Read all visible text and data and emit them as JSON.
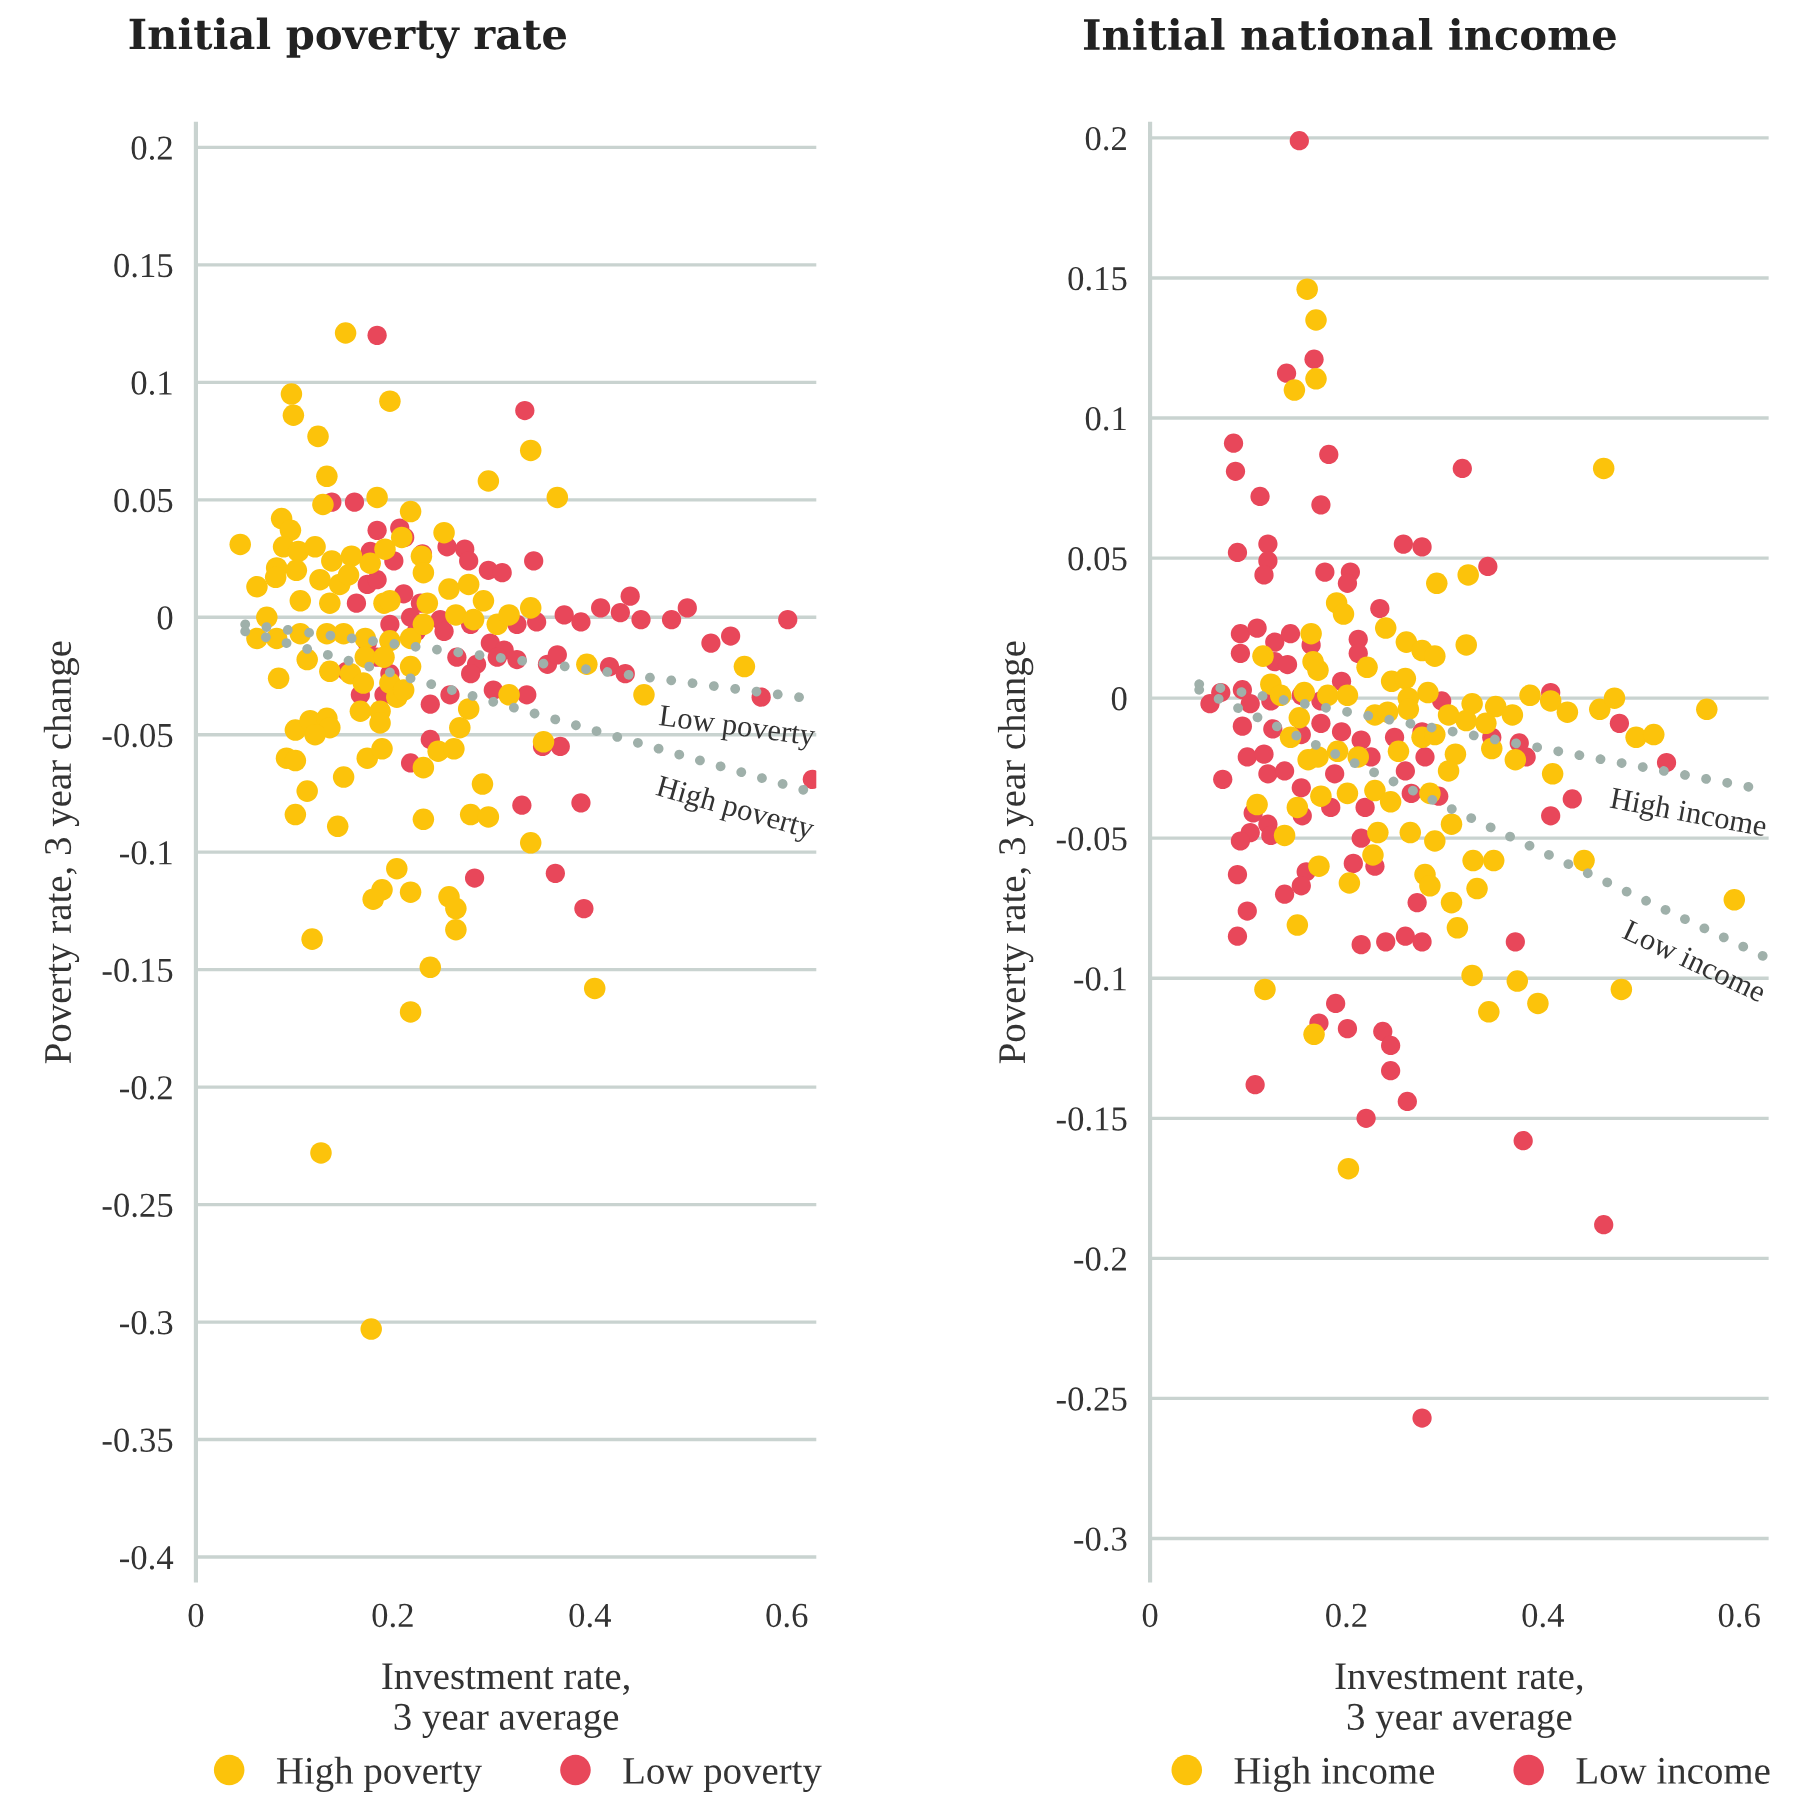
{
  "chart_data": [
    {
      "type": "scatter",
      "title": "Initial poverty rate",
      "xlabel": "Investment rate,\n3 year average",
      "ylabel": "Poverty rate, 3 year change",
      "xlim": [
        0,
        0.63
      ],
      "ylim": [
        -0.41,
        0.21
      ],
      "xticks": [
        0,
        0.2,
        0.4,
        0.6
      ],
      "yticks": [
        0.2,
        0.15,
        0.1,
        0.05,
        0,
        -0.05,
        -0.1,
        -0.15,
        -0.2,
        -0.25,
        -0.3,
        -0.35,
        -0.4
      ],
      "grid": "y",
      "legend": "bottom",
      "marker": "circle",
      "series": [
        {
          "name": "High poverty",
          "color": "#fcc30b",
          "x": [
            0.152,
            0.097,
            0.099,
            0.197,
            0.124,
            0.133,
            0.34,
            0.297,
            0.367,
            0.184,
            0.129,
            0.218,
            0.087,
            0.096,
            0.045,
            0.252,
            0.089,
            0.104,
            0.121,
            0.138,
            0.158,
            0.177,
            0.192,
            0.209,
            0.082,
            0.081,
            0.062,
            0.102,
            0.126,
            0.146,
            0.155,
            0.229,
            0.231,
            0.257,
            0.277,
            0.292,
            0.34,
            0.106,
            0.136,
            0.191,
            0.197,
            0.235,
            0.264,
            0.282,
            0.306,
            0.318,
            0.072,
            0.062,
            0.082,
            0.106,
            0.133,
            0.15,
            0.172,
            0.197,
            0.218,
            0.231,
            0.113,
            0.136,
            0.157,
            0.172,
            0.191,
            0.218,
            0.17,
            0.197,
            0.204,
            0.211,
            0.084,
            0.167,
            0.187,
            0.187,
            0.277,
            0.268,
            0.318,
            0.397,
            0.455,
            0.557,
            0.101,
            0.116,
            0.133,
            0.136,
            0.121,
            0.092,
            0.101,
            0.15,
            0.174,
            0.189,
            0.231,
            0.246,
            0.262,
            0.113,
            0.101,
            0.144,
            0.231,
            0.279,
            0.297,
            0.291,
            0.34,
            0.353,
            0.204,
            0.189,
            0.18,
            0.218,
            0.257,
            0.264,
            0.264,
            0.118,
            0.238,
            0.218,
            0.405,
            0.127,
            0.178
          ],
          "values": [
            0.121,
            0.095,
            0.086,
            0.092,
            0.077,
            0.06,
            0.071,
            0.058,
            0.051,
            0.051,
            0.048,
            0.045,
            0.042,
            0.037,
            0.031,
            0.036,
            0.03,
            0.028,
            0.03,
            0.024,
            0.026,
            0.023,
            0.029,
            0.034,
            0.021,
            0.017,
            0.013,
            0.02,
            0.016,
            0.014,
            0.018,
            0.026,
            0.019,
            0.012,
            0.014,
            0.007,
            0.004,
            0.007,
            0.006,
            0.006,
            0.007,
            0.006,
            0.001,
            -0.001,
            -0.003,
            0.001,
            0.0,
            -0.009,
            -0.009,
            -0.007,
            -0.007,
            -0.007,
            -0.009,
            -0.01,
            -0.009,
            -0.003,
            -0.018,
            -0.023,
            -0.024,
            -0.017,
            -0.017,
            -0.021,
            -0.028,
            -0.028,
            -0.034,
            -0.031,
            -0.026,
            -0.04,
            -0.04,
            -0.045,
            -0.039,
            -0.047,
            -0.033,
            -0.02,
            -0.033,
            -0.021,
            -0.048,
            -0.044,
            -0.043,
            -0.047,
            -0.05,
            -0.06,
            -0.061,
            -0.068,
            -0.06,
            -0.056,
            -0.064,
            -0.057,
            -0.056,
            -0.074,
            -0.084,
            -0.089,
            -0.086,
            -0.084,
            -0.085,
            -0.071,
            -0.096,
            -0.053,
            -0.107,
            -0.116,
            -0.12,
            -0.117,
            -0.119,
            -0.124,
            -0.133,
            -0.137,
            -0.149,
            -0.168,
            -0.158,
            -0.228,
            -0.303
          ]
        },
        {
          "name": "Low poverty",
          "color": "#e8475a",
          "x": [
            0.184,
            0.334,
            0.138,
            0.161,
            0.184,
            0.207,
            0.212,
            0.255,
            0.273,
            0.277,
            0.297,
            0.311,
            0.343,
            0.177,
            0.201,
            0.23,
            0.174,
            0.184,
            0.211,
            0.228,
            0.248,
            0.218,
            0.252,
            0.279,
            0.299,
            0.313,
            0.326,
            0.346,
            0.374,
            0.391,
            0.411,
            0.431,
            0.441,
            0.452,
            0.483,
            0.499,
            0.601,
            0.265,
            0.285,
            0.279,
            0.306,
            0.326,
            0.357,
            0.367,
            0.42,
            0.436,
            0.523,
            0.543,
            0.574,
            0.184,
            0.197,
            0.167,
            0.191,
            0.238,
            0.258,
            0.302,
            0.336,
            0.238,
            0.218,
            0.352,
            0.37,
            0.331,
            0.391,
            0.626,
            0.283,
            0.365,
            0.394,
            0.163,
            0.197,
            0.224,
            0.174,
            0.153
          ],
          "values": [
            0.12,
            0.088,
            0.049,
            0.049,
            0.037,
            0.038,
            0.034,
            0.03,
            0.029,
            0.024,
            0.02,
            0.019,
            0.024,
            0.028,
            0.024,
            0.027,
            0.014,
            0.016,
            0.01,
            0.006,
            -0.001,
            0.0,
            -0.006,
            -0.003,
            -0.011,
            -0.014,
            -0.003,
            -0.002,
            0.001,
            -0.002,
            0.004,
            0.002,
            0.009,
            -0.001,
            -0.001,
            0.004,
            -0.001,
            -0.017,
            -0.02,
            -0.024,
            -0.017,
            -0.018,
            -0.02,
            -0.016,
            -0.021,
            -0.024,
            -0.011,
            -0.008,
            -0.034,
            -0.017,
            -0.024,
            -0.033,
            -0.033,
            -0.037,
            -0.033,
            -0.031,
            -0.033,
            -0.052,
            -0.062,
            -0.055,
            -0.055,
            -0.08,
            -0.079,
            -0.069,
            -0.111,
            -0.109,
            -0.124,
            0.006,
            -0.003,
            -0.006,
            -0.011,
            -0.023
          ]
        },
        {
          "type": "line",
          "name": "Low poverty",
          "color": "#9fb0aa",
          "line_style": "dotted",
          "marker": "none",
          "x": [
            0.05,
            0.63
          ],
          "values": [
            -0.003,
            -0.035
          ]
        },
        {
          "type": "line",
          "name": "High poverty",
          "color": "#9fb0aa",
          "line_style": "dotted",
          "marker": "none",
          "x": [
            0.05,
            0.63
          ],
          "values": [
            -0.006,
            -0.075
          ]
        }
      ]
    },
    {
      "type": "scatter",
      "title": "Initial national income",
      "xlabel": "Investment rate,\n3 year average",
      "ylabel": "Poverty rate, 3 year change",
      "xlim": [
        0,
        0.63
      ],
      "ylim": [
        -0.315,
        0.205
      ],
      "xticks": [
        0,
        0.2,
        0.4,
        0.6
      ],
      "yticks": [
        0.2,
        0.15,
        0.1,
        0.05,
        0,
        -0.05,
        -0.1,
        -0.15,
        -0.2,
        -0.25,
        -0.3
      ],
      "grid": "y",
      "legend": "bottom",
      "marker": "circle",
      "series": [
        {
          "name": "High income",
          "color": "#fcc30b",
          "x": [
            0.16,
            0.169,
            0.169,
            0.147,
            0.462,
            0.292,
            0.324,
            0.19,
            0.197,
            0.24,
            0.261,
            0.277,
            0.29,
            0.322,
            0.164,
            0.115,
            0.166,
            0.171,
            0.221,
            0.123,
            0.133,
            0.157,
            0.181,
            0.201,
            0.246,
            0.26,
            0.283,
            0.263,
            0.229,
            0.242,
            0.263,
            0.304,
            0.328,
            0.352,
            0.369,
            0.387,
            0.408,
            0.425,
            0.458,
            0.473,
            0.495,
            0.513,
            0.567,
            0.322,
            0.342,
            0.152,
            0.143,
            0.161,
            0.171,
            0.191,
            0.212,
            0.253,
            0.277,
            0.29,
            0.311,
            0.348,
            0.372,
            0.41,
            0.304,
            0.109,
            0.137,
            0.15,
            0.174,
            0.201,
            0.229,
            0.245,
            0.285,
            0.307,
            0.232,
            0.265,
            0.29,
            0.172,
            0.227,
            0.203,
            0.28,
            0.285,
            0.329,
            0.35,
            0.333,
            0.307,
            0.313,
            0.442,
            0.595,
            0.15,
            0.117,
            0.167,
            0.328,
            0.345,
            0.374,
            0.395,
            0.48,
            0.202
          ],
          "values": [
            0.146,
            0.135,
            0.114,
            0.11,
            0.082,
            0.041,
            0.044,
            0.034,
            0.03,
            0.025,
            0.02,
            0.017,
            0.015,
            0.019,
            0.023,
            0.015,
            0.013,
            0.01,
            0.011,
            0.005,
            0.001,
            0.002,
            0.001,
            0.001,
            0.006,
            0.007,
            0.002,
            0.0,
            -0.006,
            -0.005,
            -0.004,
            -0.006,
            -0.002,
            -0.003,
            -0.006,
            0.001,
            -0.001,
            -0.005,
            -0.004,
            0.0,
            -0.014,
            -0.013,
            -0.004,
            -0.008,
            -0.009,
            -0.007,
            -0.014,
            -0.022,
            -0.021,
            -0.019,
            -0.021,
            -0.019,
            -0.014,
            -0.013,
            -0.02,
            -0.018,
            -0.022,
            -0.027,
            -0.026,
            -0.038,
            -0.049,
            -0.039,
            -0.035,
            -0.034,
            -0.033,
            -0.037,
            -0.034,
            -0.045,
            -0.048,
            -0.048,
            -0.051,
            -0.06,
            -0.056,
            -0.066,
            -0.063,
            -0.067,
            -0.058,
            -0.058,
            -0.068,
            -0.073,
            -0.082,
            -0.058,
            -0.072,
            -0.081,
            -0.104,
            -0.12,
            -0.099,
            -0.112,
            -0.101,
            -0.109,
            -0.104,
            -0.168
          ]
        },
        {
          "name": "Low income",
          "color": "#e8475a",
          "x": [
            0.152,
            0.167,
            0.139,
            0.085,
            0.087,
            0.182,
            0.318,
            0.112,
            0.174,
            0.12,
            0.089,
            0.12,
            0.116,
            0.178,
            0.204,
            0.201,
            0.258,
            0.277,
            0.344,
            0.234,
            0.092,
            0.109,
            0.127,
            0.143,
            0.164,
            0.092,
            0.127,
            0.14,
            0.212,
            0.212,
            0.072,
            0.061,
            0.094,
            0.102,
            0.123,
            0.154,
            0.195,
            0.174,
            0.297,
            0.408,
            0.094,
            0.125,
            0.154,
            0.174,
            0.195,
            0.215,
            0.249,
            0.277,
            0.348,
            0.376,
            0.383,
            0.478,
            0.526,
            0.099,
            0.116,
            0.12,
            0.137,
            0.188,
            0.225,
            0.26,
            0.28,
            0.074,
            0.154,
            0.184,
            0.219,
            0.266,
            0.294,
            0.408,
            0.43,
            0.105,
            0.12,
            0.102,
            0.092,
            0.123,
            0.215,
            0.155,
            0.089,
            0.159,
            0.154,
            0.137,
            0.207,
            0.229,
            0.272,
            0.099,
            0.089,
            0.215,
            0.24,
            0.26,
            0.277,
            0.372,
            0.189,
            0.172,
            0.201,
            0.237,
            0.245,
            0.245,
            0.262,
            0.22,
            0.107,
            0.38,
            0.462,
            0.277
          ],
          "values": [
            0.199,
            0.121,
            0.116,
            0.091,
            0.081,
            0.087,
            0.082,
            0.072,
            0.069,
            0.055,
            0.052,
            0.049,
            0.044,
            0.045,
            0.045,
            0.041,
            0.055,
            0.054,
            0.047,
            0.032,
            0.023,
            0.025,
            0.02,
            0.023,
            0.019,
            0.016,
            0.013,
            0.012,
            0.021,
            0.016,
            0.002,
            -0.002,
            0.003,
            -0.002,
            -0.001,
            0.001,
            0.006,
            -0.001,
            -0.001,
            0.002,
            -0.01,
            -0.011,
            -0.013,
            -0.009,
            -0.012,
            -0.015,
            -0.014,
            -0.012,
            -0.014,
            -0.016,
            -0.021,
            -0.009,
            -0.023,
            -0.021,
            -0.02,
            -0.027,
            -0.026,
            -0.027,
            -0.021,
            -0.026,
            -0.021,
            -0.029,
            -0.032,
            -0.039,
            -0.039,
            -0.034,
            -0.035,
            -0.042,
            -0.036,
            -0.041,
            -0.045,
            -0.048,
            -0.051,
            -0.049,
            -0.05,
            -0.042,
            -0.063,
            -0.062,
            -0.067,
            -0.07,
            -0.059,
            -0.06,
            -0.073,
            -0.076,
            -0.085,
            -0.088,
            -0.087,
            -0.085,
            -0.087,
            -0.087,
            -0.109,
            -0.116,
            -0.118,
            -0.119,
            -0.124,
            -0.133,
            -0.144,
            -0.15,
            -0.138,
            -0.158,
            -0.188,
            -0.257
          ]
        },
        {
          "type": "line",
          "name": "High income",
          "color": "#9fb0aa",
          "line_style": "dotted",
          "marker": "none",
          "x": [
            0.05,
            0.63
          ],
          "values": [
            0.005,
            -0.033
          ]
        },
        {
          "type": "line",
          "name": "Low income",
          "color": "#9fb0aa",
          "line_style": "dotted",
          "marker": "none",
          "x": [
            0.05,
            0.63
          ],
          "values": [
            0.003,
            -0.093
          ]
        }
      ]
    }
  ]
}
